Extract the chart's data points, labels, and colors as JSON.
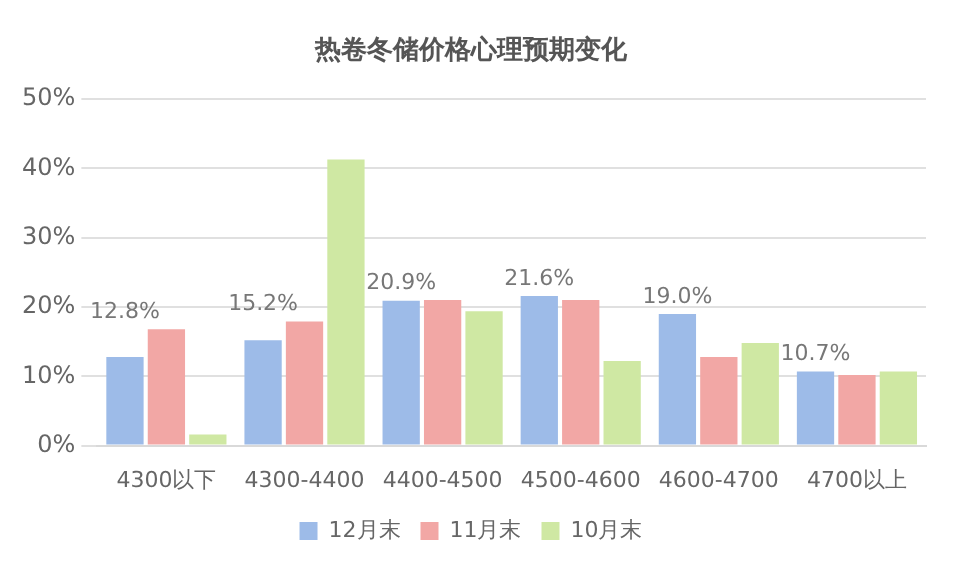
{
  "chart_data": {
    "type": "bar",
    "title": "热卷冬储价格心理预期变化",
    "categories": [
      "4300以下",
      "4300-4400",
      "4400-4500",
      "4500-4600",
      "4600-4700",
      "4700以上"
    ],
    "series": [
      {
        "name": "12月末",
        "color": "#9dbbe8",
        "values": [
          12.8,
          15.2,
          20.9,
          21.6,
          19.0,
          10.7
        ],
        "value_labels": [
          "12.8%",
          "15.2%",
          "20.9%",
          "21.6%",
          "19.0%",
          "10.7%"
        ]
      },
      {
        "name": "11月末",
        "color": "#f2a7a5",
        "values": [
          16.8,
          17.9,
          21.0,
          21.0,
          12.8,
          10.2
        ]
      },
      {
        "name": "10月末",
        "color": "#cfe8a3",
        "values": [
          1.6,
          41.3,
          19.4,
          12.2,
          14.8,
          10.7
        ]
      }
    ],
    "ylim": [
      0,
      50
    ],
    "yticks": [
      {
        "value": 0,
        "label": "0%"
      },
      {
        "value": 10,
        "label": "10%"
      },
      {
        "value": 20,
        "label": "20%"
      },
      {
        "value": 30,
        "label": "30%"
      },
      {
        "value": 40,
        "label": "40%"
      },
      {
        "value": 50,
        "label": "50%"
      }
    ],
    "grid": "y",
    "legend": "bottom"
  }
}
